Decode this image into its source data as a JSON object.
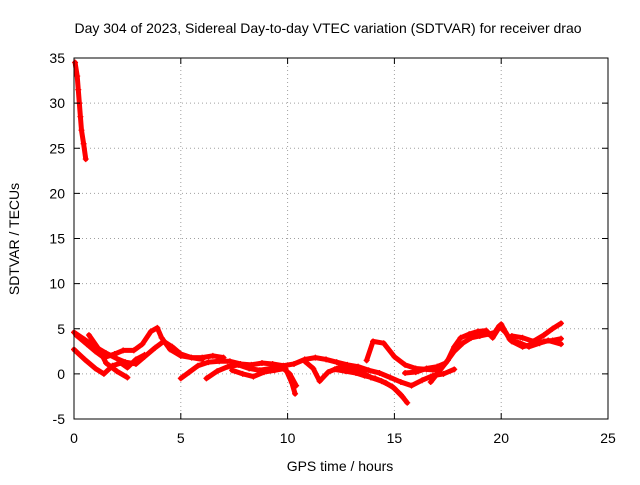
{
  "chart_data": {
    "type": "scatter",
    "title": "Day 304 of 2023, Sidereal Day-to-day VTEC variation (SDTVAR) for receiver drao",
    "xlabel": "GPS time / hours",
    "ylabel": "SDTVAR / TECUs",
    "xlim": [
      0,
      25
    ],
    "ylim": [
      -5,
      35
    ],
    "xticks": [
      "0",
      "5",
      "10",
      "15",
      "20",
      "25"
    ],
    "yticks": [
      "-5",
      "0",
      "5",
      "10",
      "15",
      "20",
      "25",
      "30",
      "35"
    ],
    "xtick_values": [
      0,
      5,
      10,
      15,
      20,
      25
    ],
    "ytick_values": [
      -5,
      0,
      5,
      10,
      15,
      20,
      25,
      30,
      35
    ],
    "grid": true,
    "series": [
      {
        "name": "SDTVAR",
        "color": "#ff0000",
        "marker": "plus",
        "tracks": [
          [
            [
              0.05,
              34.5
            ],
            [
              0.15,
              33
            ],
            [
              0.2,
              31.5
            ],
            [
              0.25,
              30
            ],
            [
              0.3,
              28.5
            ],
            [
              0.35,
              27
            ],
            [
              0.45,
              25.5
            ],
            [
              0.55,
              23.8
            ]
          ],
          [
            [
              0.0,
              4.6
            ],
            [
              0.5,
              3.8
            ],
            [
              1.0,
              3.0
            ],
            [
              1.5,
              2.3
            ],
            [
              2.0,
              1.7
            ],
            [
              2.4,
              1.3
            ],
            [
              2.9,
              1.1
            ],
            [
              3.3,
              1.9
            ],
            [
              3.8,
              2.9
            ],
            [
              4.2,
              3.6
            ],
            [
              4.6,
              3.0
            ],
            [
              5.0,
              2.2
            ],
            [
              5.5,
              1.8
            ],
            [
              6.0,
              1.8
            ],
            [
              6.5,
              2.0
            ],
            [
              7.0,
              1.8
            ]
          ],
          [
            [
              0.1,
              4.3
            ],
            [
              0.6,
              3.3
            ],
            [
              1.0,
              2.5
            ],
            [
              1.4,
              1.8
            ],
            [
              1.9,
              2.2
            ],
            [
              2.3,
              2.6
            ],
            [
              2.8,
              2.6
            ],
            [
              3.2,
              3.3
            ],
            [
              3.6,
              4.7
            ],
            [
              3.9,
              5.1
            ],
            [
              4.1,
              4.0
            ],
            [
              4.5,
              2.7
            ],
            [
              5.0,
              2.0
            ],
            [
              6.0,
              1.6
            ]
          ],
          [
            [
              0.0,
              2.7
            ],
            [
              0.5,
              1.6
            ],
            [
              1.0,
              0.6
            ],
            [
              1.4,
              0.0
            ],
            [
              1.8,
              0.9
            ],
            [
              2.2,
              1.2
            ],
            [
              2.5,
              0.7
            ],
            [
              2.9,
              1.6
            ],
            [
              3.3,
              2.1
            ]
          ],
          [
            [
              0.7,
              4.3
            ],
            [
              1.2,
              2.6
            ],
            [
              1.5,
              1.2
            ],
            [
              2.0,
              0.3
            ],
            [
              2.5,
              -0.4
            ]
          ],
          [
            [
              5.0,
              -0.5
            ],
            [
              5.4,
              0.2
            ],
            [
              5.8,
              0.9
            ],
            [
              6.3,
              1.3
            ],
            [
              6.8,
              1.4
            ],
            [
              7.3,
              1.4
            ],
            [
              7.8,
              1.1
            ],
            [
              8.3,
              1.0
            ],
            [
              8.8,
              1.2
            ],
            [
              9.3,
              1.1
            ],
            [
              9.8,
              0.9
            ],
            [
              10.3,
              1.1
            ],
            [
              10.8,
              1.6
            ],
            [
              11.3,
              1.8
            ],
            [
              11.8,
              1.6
            ],
            [
              12.3,
              1.3
            ],
            [
              12.8,
              1.0
            ],
            [
              13.3,
              0.8
            ],
            [
              13.8,
              0.4
            ],
            [
              14.3,
              0.1
            ],
            [
              14.8,
              -0.4
            ],
            [
              15.3,
              -0.9
            ],
            [
              15.8,
              -1.3
            ],
            [
              16.3,
              -0.7
            ],
            [
              16.8,
              -0.2
            ],
            [
              17.3,
              0.0
            ],
            [
              17.8,
              0.5
            ]
          ],
          [
            [
              6.2,
              -0.5
            ],
            [
              6.7,
              0.3
            ],
            [
              7.2,
              0.8
            ],
            [
              7.7,
              1.0
            ],
            [
              8.2,
              0.6
            ],
            [
              8.7,
              0.4
            ],
            [
              9.2,
              0.6
            ],
            [
              9.7,
              0.8
            ],
            [
              10.1,
              0.0
            ],
            [
              10.4,
              -1.3
            ]
          ],
          [
            [
              7.4,
              0.4
            ],
            [
              7.9,
              0.0
            ],
            [
              8.4,
              -0.3
            ],
            [
              8.9,
              0.2
            ],
            [
              9.4,
              0.4
            ],
            [
              9.9,
              0.6
            ],
            [
              10.2,
              -1.0
            ],
            [
              10.35,
              -2.2
            ]
          ],
          [
            [
              10.8,
              1.4
            ],
            [
              11.2,
              0.6
            ],
            [
              11.5,
              -0.8
            ],
            [
              11.9,
              0.2
            ],
            [
              12.4,
              0.7
            ],
            [
              12.9,
              0.6
            ],
            [
              13.4,
              0.3
            ],
            [
              13.9,
              -0.4
            ],
            [
              14.4,
              -0.8
            ],
            [
              14.9,
              -1.4
            ],
            [
              15.3,
              -2.3
            ],
            [
              15.6,
              -3.2
            ]
          ],
          [
            [
              12.2,
              0.5
            ],
            [
              12.7,
              0.3
            ],
            [
              13.2,
              0.1
            ],
            [
              13.6,
              -0.2
            ],
            [
              14.1,
              -0.5
            ],
            [
              14.6,
              -1.0
            ],
            [
              15.0,
              -1.6
            ],
            [
              15.4,
              -2.6
            ]
          ],
          [
            [
              13.7,
              1.5
            ],
            [
              14.0,
              3.6
            ],
            [
              14.5,
              3.4
            ],
            [
              15.0,
              1.9
            ],
            [
              15.5,
              1.0
            ],
            [
              16.0,
              0.6
            ],
            [
              16.5,
              0.5
            ],
            [
              17.0,
              0.4
            ]
          ],
          [
            [
              15.5,
              0.1
            ],
            [
              16.0,
              0.2
            ],
            [
              16.5,
              0.6
            ],
            [
              17.0,
              0.8
            ],
            [
              17.4,
              1.2
            ],
            [
              17.8,
              2.5
            ],
            [
              18.2,
              3.4
            ],
            [
              18.6,
              4.0
            ],
            [
              19.0,
              4.2
            ],
            [
              19.4,
              4.4
            ],
            [
              19.7,
              4.6
            ],
            [
              19.9,
              5.3
            ],
            [
              20.2,
              4.6
            ],
            [
              20.5,
              3.6
            ],
            [
              21.0,
              3.0
            ],
            [
              21.5,
              3.3
            ],
            [
              22.0,
              3.6
            ],
            [
              22.4,
              3.7
            ],
            [
              22.8,
              3.9
            ]
          ],
          [
            [
              16.7,
              -0.9
            ],
            [
              17.1,
              0.3
            ],
            [
              17.5,
              1.5
            ],
            [
              17.8,
              3.0
            ],
            [
              18.1,
              4.0
            ],
            [
              18.5,
              4.4
            ],
            [
              18.9,
              4.7
            ],
            [
              19.3,
              4.8
            ],
            [
              19.6,
              4.0
            ],
            [
              20.0,
              5.5
            ],
            [
              20.4,
              3.8
            ],
            [
              20.9,
              3.4
            ],
            [
              21.3,
              3.0
            ],
            [
              21.8,
              3.4
            ],
            [
              22.2,
              3.7
            ],
            [
              22.8,
              3.3
            ]
          ],
          [
            [
              20.5,
              4.2
            ],
            [
              21.0,
              4.0
            ],
            [
              21.5,
              3.6
            ],
            [
              22.0,
              4.3
            ],
            [
              22.4,
              5.0
            ],
            [
              22.8,
              5.6
            ]
          ]
        ]
      }
    ]
  }
}
